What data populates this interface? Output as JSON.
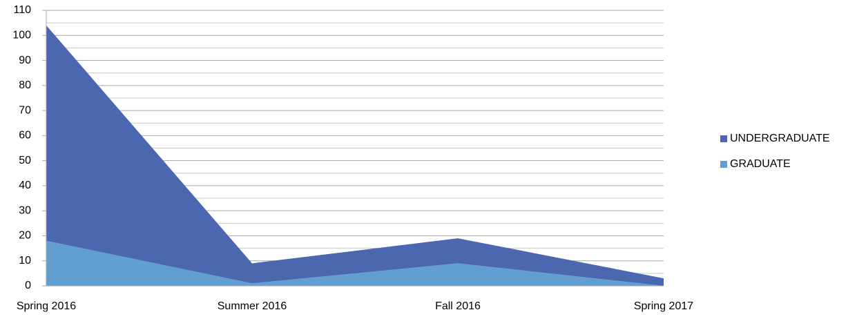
{
  "chart_data": {
    "type": "stacked_area",
    "categories": [
      "Spring 2016",
      "Summer 2016",
      "Fall 2016",
      "Spring 2017"
    ],
    "series": [
      {
        "name": "UNDERGRADUATE",
        "color": "#4a67b0",
        "values": [
          86,
          8,
          10,
          3
        ]
      },
      {
        "name": "GRADUATE",
        "color": "#619fd3",
        "values": [
          18,
          1,
          9,
          0
        ]
      }
    ],
    "ylim": [
      0,
      110
    ],
    "yticks": [
      0,
      10,
      20,
      30,
      40,
      50,
      60,
      70,
      80,
      90,
      100,
      110
    ],
    "grid": true,
    "minor_grid": true,
    "legend": "right"
  }
}
